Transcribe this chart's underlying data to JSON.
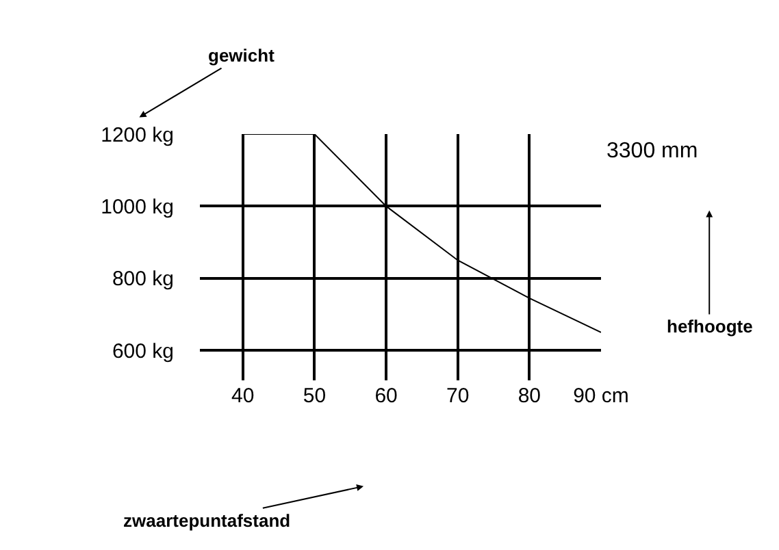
{
  "chart_data": {
    "type": "line",
    "x": [
      40,
      50,
      60,
      70,
      80,
      90
    ],
    "series": [
      {
        "color": "#000000",
        "values": [
          1200,
          1200,
          1000,
          850,
          745,
          650
        ]
      }
    ],
    "xlim": [
      34,
      90
    ],
    "xticks": [
      40,
      50,
      60,
      70,
      80,
      {
        "value": 90,
        "label": "90 cm"
      }
    ],
    "ylim": [
      517,
      1200
    ],
    "yticks": [
      {
        "value": 600,
        "label": "600 kg"
      },
      {
        "value": 800,
        "label": "800 kg"
      },
      {
        "value": 1000,
        "label": "1000 kg"
      },
      {
        "value": 1200,
        "label": "1200 kg"
      }
    ],
    "grid": true,
    "marker": "none",
    "line_style": "solid",
    "annotations": [
      "gewicht",
      "3300 mm",
      "hefhoogte",
      "zwaartepuntafstand"
    ]
  }
}
